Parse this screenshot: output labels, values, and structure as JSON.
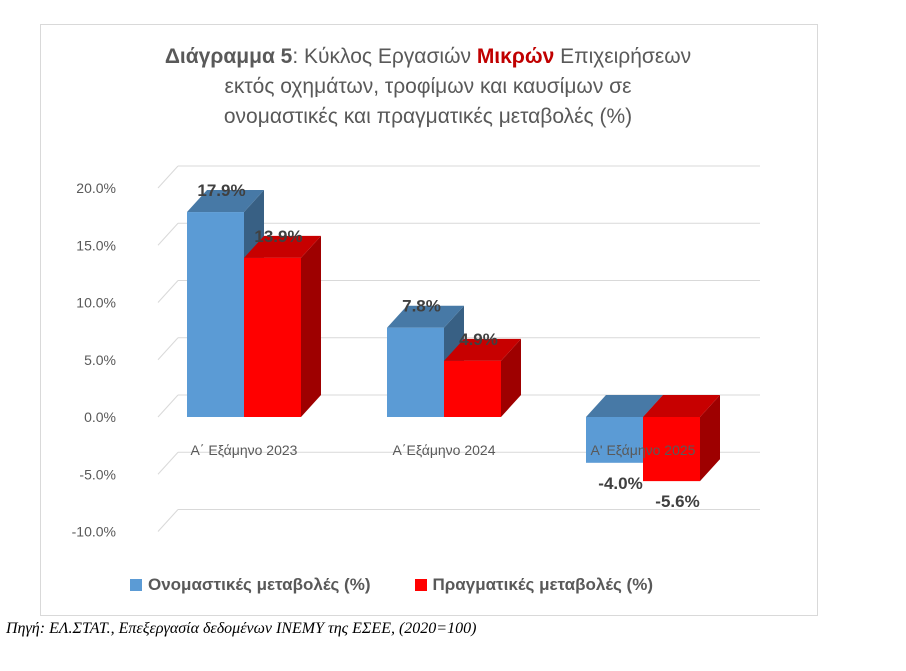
{
  "title": {
    "bold_part": "Διάγραμμα 5",
    "part1": ": Κύκλος Εργασιών ",
    "highlight": "Μικρών",
    "part2": " Επιχειρήσεων",
    "line2": "εκτός οχημάτων, τροφίμων και καυσίμων σε",
    "line3": "ονομαστικές και πραγματικές μεταβολές (%)"
  },
  "source": "Πηγή: ΕΛ.ΣΤΑΤ., Επεξεργασία δεδομένων ΙΝΕΜΥ της ΕΣΕΕ, (2020=100)",
  "chart_data": {
    "type": "bar",
    "categories": [
      "Α΄ Εξάμηνο 2023",
      "Α΄Εξάμηνο 2024",
      "Α' Εξάμηνο 2025"
    ],
    "series": [
      {
        "name": "Ονομαστικές μεταβολές (%)",
        "values": [
          17.9,
          7.8,
          -4.0
        ],
        "labels": [
          "17.9%",
          "7.8%",
          "-4.0%"
        ],
        "color": "#5b9bd5"
      },
      {
        "name": "Πραγματικές μεταβολές (%)",
        "values": [
          13.9,
          4.9,
          -5.6
        ],
        "labels": [
          "13.9%",
          "4.9%",
          "-5.6%"
        ],
        "color": "#ff0000"
      }
    ],
    "yticks": [
      20,
      15,
      10,
      5,
      0,
      -5,
      -10
    ],
    "ytick_labels": [
      "20.0%",
      "15.0%",
      "10.0%",
      "5.0%",
      "0.0%",
      "-5.0%",
      "-10.0%"
    ],
    "ylim": [
      -10,
      20
    ],
    "grid": true,
    "legend_position": "bottom"
  }
}
